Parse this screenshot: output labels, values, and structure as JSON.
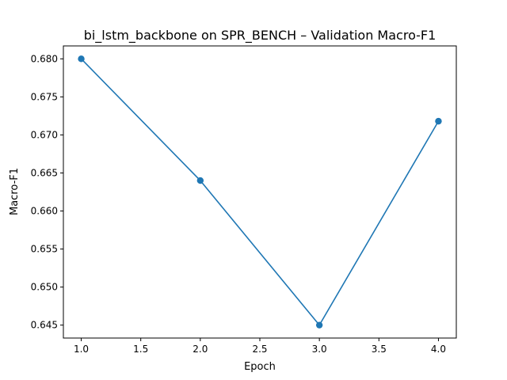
{
  "chart_data": {
    "type": "line",
    "title": "bi_lstm_backbone on SPR_BENCH – Validation Macro-F1",
    "xlabel": "Epoch",
    "ylabel": "Macro-F1",
    "xlim": [
      0.85,
      4.15
    ],
    "ylim": [
      0.6433,
      0.6817
    ],
    "xticks": [
      1.0,
      1.5,
      2.0,
      2.5,
      3.0,
      3.5,
      4.0
    ],
    "xtick_labels": [
      "1.0",
      "1.5",
      "2.0",
      "2.5",
      "3.0",
      "3.5",
      "4.0"
    ],
    "yticks": [
      0.645,
      0.65,
      0.655,
      0.66,
      0.665,
      0.67,
      0.675,
      0.68
    ],
    "ytick_labels": [
      "0.645",
      "0.650",
      "0.655",
      "0.660",
      "0.665",
      "0.670",
      "0.675",
      "0.680"
    ],
    "grid": false,
    "series": [
      {
        "color": "#1f77b4",
        "marker": "circle",
        "x": [
          1,
          2,
          3,
          4
        ],
        "y": [
          0.68,
          0.664,
          0.645,
          0.6718
        ]
      }
    ]
  }
}
